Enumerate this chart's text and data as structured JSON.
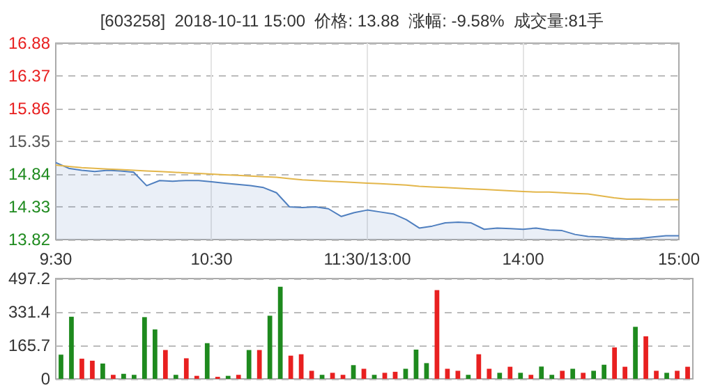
{
  "chart_data": [
    {
      "type": "line",
      "title": "[603258]  2018-10-11 15:00  价格: 13.88  涨幅: -9.58%  成交量:81手",
      "categories": [
        "9:30",
        null,
        null,
        null,
        null,
        null,
        null,
        null,
        null,
        null,
        null,
        null,
        "10:30",
        null,
        null,
        null,
        null,
        null,
        null,
        null,
        null,
        null,
        null,
        null,
        "11:30/13:00",
        null,
        null,
        null,
        null,
        null,
        null,
        null,
        null,
        null,
        null,
        null,
        "14:00",
        null,
        null,
        null,
        null,
        null,
        null,
        null,
        null,
        null,
        null,
        null,
        "15:00"
      ],
      "series": [
        {
          "type": "area",
          "color": "#4f7fbf",
          "values": [
            15.02,
            14.93,
            14.9,
            14.88,
            14.9,
            14.89,
            14.87,
            14.66,
            14.74,
            14.73,
            14.74,
            14.74,
            14.72,
            14.7,
            14.68,
            14.66,
            14.63,
            14.55,
            14.33,
            14.32,
            14.33,
            14.3,
            14.18,
            14.24,
            14.28,
            14.25,
            14.22,
            14.13,
            14.0,
            14.03,
            14.08,
            14.09,
            14.08,
            13.98,
            14.0,
            13.99,
            13.98,
            14.0,
            13.97,
            13.96,
            13.9,
            13.87,
            13.86,
            13.84,
            13.83,
            13.84,
            13.86,
            13.88,
            13.88
          ]
        },
        {
          "type": "line",
          "color": "#e3b64a",
          "values": [
            14.98,
            14.96,
            14.94,
            14.93,
            14.92,
            14.91,
            14.9,
            14.89,
            14.88,
            14.87,
            14.86,
            14.85,
            14.84,
            14.83,
            14.82,
            14.81,
            14.8,
            14.79,
            14.77,
            14.75,
            14.74,
            14.73,
            14.72,
            14.71,
            14.7,
            14.69,
            14.68,
            14.67,
            14.65,
            14.64,
            14.63,
            14.62,
            14.61,
            14.6,
            14.59,
            14.58,
            14.57,
            14.56,
            14.56,
            14.55,
            14.54,
            14.53,
            14.5,
            14.47,
            14.45,
            14.45,
            14.44,
            14.44,
            14.44
          ]
        }
      ],
      "ylim": [
        13.82,
        16.88
      ],
      "yticks": [
        13.82,
        14.33,
        14.84,
        15.35,
        15.86,
        16.37,
        16.88
      ],
      "grid": true,
      "marker": "none",
      "line_style": "solid"
    },
    {
      "type": "bar",
      "categories": [
        null,
        null,
        null,
        null,
        null,
        null,
        null,
        null,
        null,
        null,
        null,
        null,
        null,
        null,
        null,
        null,
        null,
        null,
        null,
        null,
        null,
        null,
        null,
        null,
        null,
        null,
        null,
        null,
        null,
        null,
        null,
        null,
        null,
        null,
        null,
        null,
        null,
        null,
        null,
        null,
        null,
        null,
        null,
        null,
        null,
        null,
        null,
        null,
        null,
        null,
        null,
        null,
        null,
        null,
        null,
        null,
        null,
        null,
        null,
        null,
        null
      ],
      "values": [
        120,
        308,
        100,
        90,
        76,
        20,
        25,
        20,
        306,
        245,
        143,
        20,
        102,
        15,
        177,
        10,
        15,
        20,
        143,
        143,
        313,
        457,
        115,
        122,
        40,
        20,
        30,
        20,
        68,
        50,
        20,
        30,
        35,
        50,
        145,
        78,
        440,
        50,
        40,
        20,
        122,
        50,
        30,
        60,
        30,
        20,
        61,
        20,
        40,
        50,
        30,
        40,
        70,
        156,
        60,
        258,
        211,
        40,
        30,
        40,
        60
      ],
      "colors": [
        "#1e8a1e",
        "#1e8a1e",
        "#e82020",
        "#e82020",
        "#1e8a1e",
        "#e82020",
        "#1e8a1e",
        "#1e8a1e",
        "#1e8a1e",
        "#1e8a1e",
        "#e82020",
        "#1e8a1e",
        "#e82020",
        "#e82020",
        "#1e8a1e",
        "#e82020",
        "#1e8a1e",
        "#e82020",
        "#1e8a1e",
        "#e82020",
        "#1e8a1e",
        "#1e8a1e",
        "#e82020",
        "#e82020",
        "#e82020",
        "#1e8a1e",
        "#e82020",
        "#e82020",
        "#1e8a1e",
        "#e82020",
        "#1e8a1e",
        "#e82020",
        "#e82020",
        "#1e8a1e",
        "#1e8a1e",
        "#1e8a1e",
        "#e82020",
        "#e82020",
        "#e82020",
        "#1e8a1e",
        "#e82020",
        "#e82020",
        "#1e8a1e",
        "#e82020",
        "#1e8a1e",
        "#e82020",
        "#1e8a1e",
        "#1e8a1e",
        "#e82020",
        "#1e8a1e",
        "#e82020",
        "#1e8a1e",
        "#1e8a1e",
        "#e82020",
        "#e82020",
        "#1e8a1e",
        "#e82020",
        "#e82020",
        "#1e8a1e",
        "#e82020",
        "#e82020"
      ],
      "ylim": [
        0,
        497.2
      ],
      "yticks": [
        0,
        165.7,
        331.4,
        497.2
      ],
      "grid": "y",
      "tick_labels": "y"
    }
  ]
}
